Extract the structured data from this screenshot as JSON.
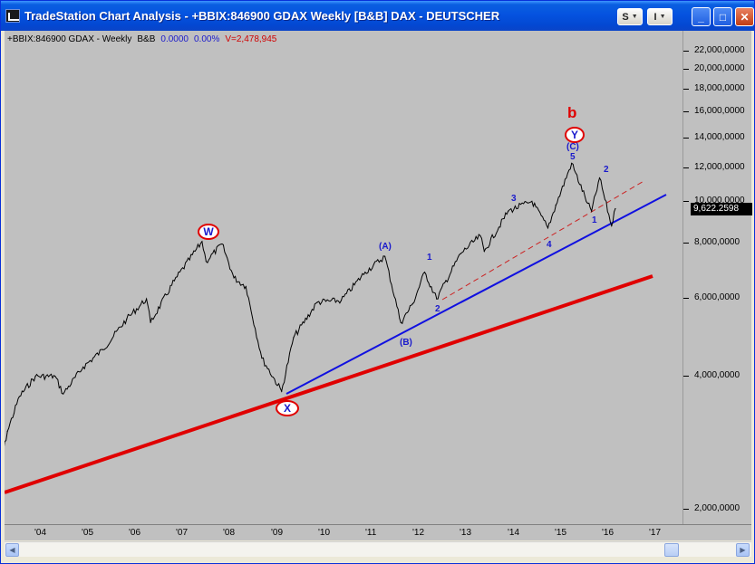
{
  "window": {
    "title": "TradeStation Chart Analysis - +BBIX:846900 GDAX Weekly [B&B] DAX - DEUTSCHER",
    "s_button": "S",
    "i_button": "I",
    "minimize": "_",
    "maximize": "□",
    "close": "✕"
  },
  "info": {
    "symbol": "+BBIX:846900 GDAX - Weekly",
    "style": "B&B",
    "change": "0.0000",
    "change_pct": "0.00%",
    "volume": "V=2,478,945"
  },
  "price_axis": {
    "labels": [
      "22,000,0000",
      "20,000,0000",
      "18,000,0000",
      "16,000,0000",
      "14,000,0000",
      "12,000,0000",
      "10,000,0000",
      "8,000,0000",
      "6,000,0000",
      "4,000,0000",
      "2,000,0000"
    ],
    "last_price": "9,622.2598"
  },
  "date_axis": {
    "labels": [
      "'04",
      "'05",
      "'06",
      "'07",
      "'08",
      "'09",
      "'10",
      "'11",
      "'12",
      "'13",
      "'14",
      "'15",
      "'16",
      "'17"
    ]
  },
  "annotations": {
    "W": "W",
    "X": "X",
    "Y": "Y",
    "b": "b",
    "A": "(A)",
    "B": "(B)",
    "C": "(C)",
    "w1": "1",
    "w2": "2",
    "w3": "3",
    "w4": "4",
    "w5": "5",
    "n1": "1",
    "n2": "2"
  },
  "colors": {
    "background": "#c0c0c0",
    "price_line": "#000000",
    "support_red": "#e00000",
    "support_blue": "#1010e0",
    "labels_blue": "#1a1acc"
  },
  "chart_data": {
    "type": "line",
    "title": "",
    "xlabel": "",
    "ylabel": "",
    "scale": "log",
    "ylim": [
      1700,
      24000
    ],
    "x": [
      "2003-03",
      "2003-06",
      "2003-09",
      "2004-01",
      "2004-06",
      "2004-08",
      "2005-01",
      "2005-06",
      "2005-12",
      "2006-05",
      "2006-06",
      "2006-12",
      "2007-07",
      "2007-08",
      "2007-12",
      "2008-03",
      "2008-06",
      "2008-10",
      "2009-03",
      "2009-06",
      "2009-12",
      "2010-06",
      "2010-12",
      "2011-05",
      "2011-09",
      "2011-12",
      "2012-03",
      "2012-06",
      "2012-12",
      "2013-05",
      "2013-06",
      "2013-12",
      "2014-06",
      "2014-10",
      "2014-12",
      "2015-04",
      "2015-08",
      "2015-09",
      "2015-11",
      "2016-02",
      "2016-03"
    ],
    "series": [
      {
        "values": [
          2200,
          3000,
          3600,
          4000,
          4000,
          3650,
          4200,
          4600,
          5400,
          6000,
          5300,
          6600,
          8100,
          7300,
          8000,
          6700,
          6400,
          4400,
          3700,
          4900,
          5900,
          5950,
          6900,
          7500,
          5300,
          5850,
          6900,
          6000,
          7600,
          8350,
          7700,
          9500,
          10000,
          8700,
          9800,
          12200,
          9900,
          9500,
          11300,
          8800,
          9622
        ]
      }
    ]
  }
}
